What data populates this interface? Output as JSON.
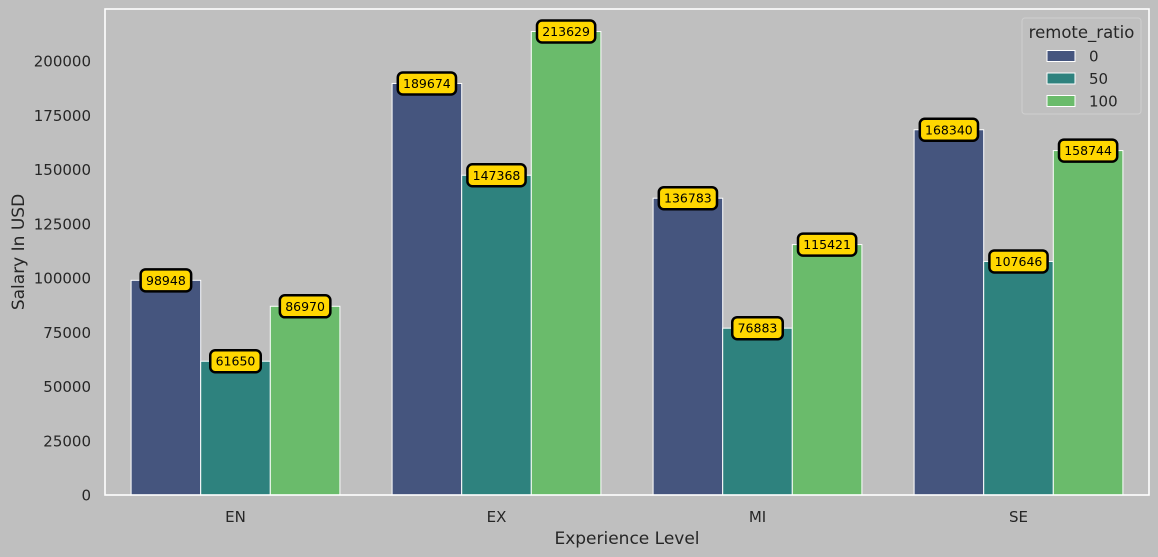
{
  "chart_data": {
    "type": "bar",
    "categories": [
      "EN",
      "EX",
      "MI",
      "SE"
    ],
    "series": [
      {
        "name": "0",
        "values": [
          98948,
          189674,
          136783,
          168340
        ]
      },
      {
        "name": "50",
        "values": [
          61650,
          147368,
          76883,
          107646
        ]
      },
      {
        "name": "100",
        "values": [
          86970,
          213629,
          115421,
          158744
        ]
      }
    ],
    "xlabel": "Experience Level",
    "ylabel": "Salary In USD",
    "ylim": [
      0,
      224000
    ],
    "yticks": [
      0,
      25000,
      50000,
      75000,
      100000,
      125000,
      150000,
      175000,
      200000
    ],
    "legend": {
      "title": "remote_ratio",
      "position": "top-right"
    },
    "grid": false,
    "colors": {
      "series": [
        "#45557e",
        "#2e827e",
        "#6abb6b"
      ],
      "background": "#bfbfbf",
      "label_fill": "#ffd700",
      "label_border": "#000000",
      "bar_edge": "#ffffff"
    }
  }
}
